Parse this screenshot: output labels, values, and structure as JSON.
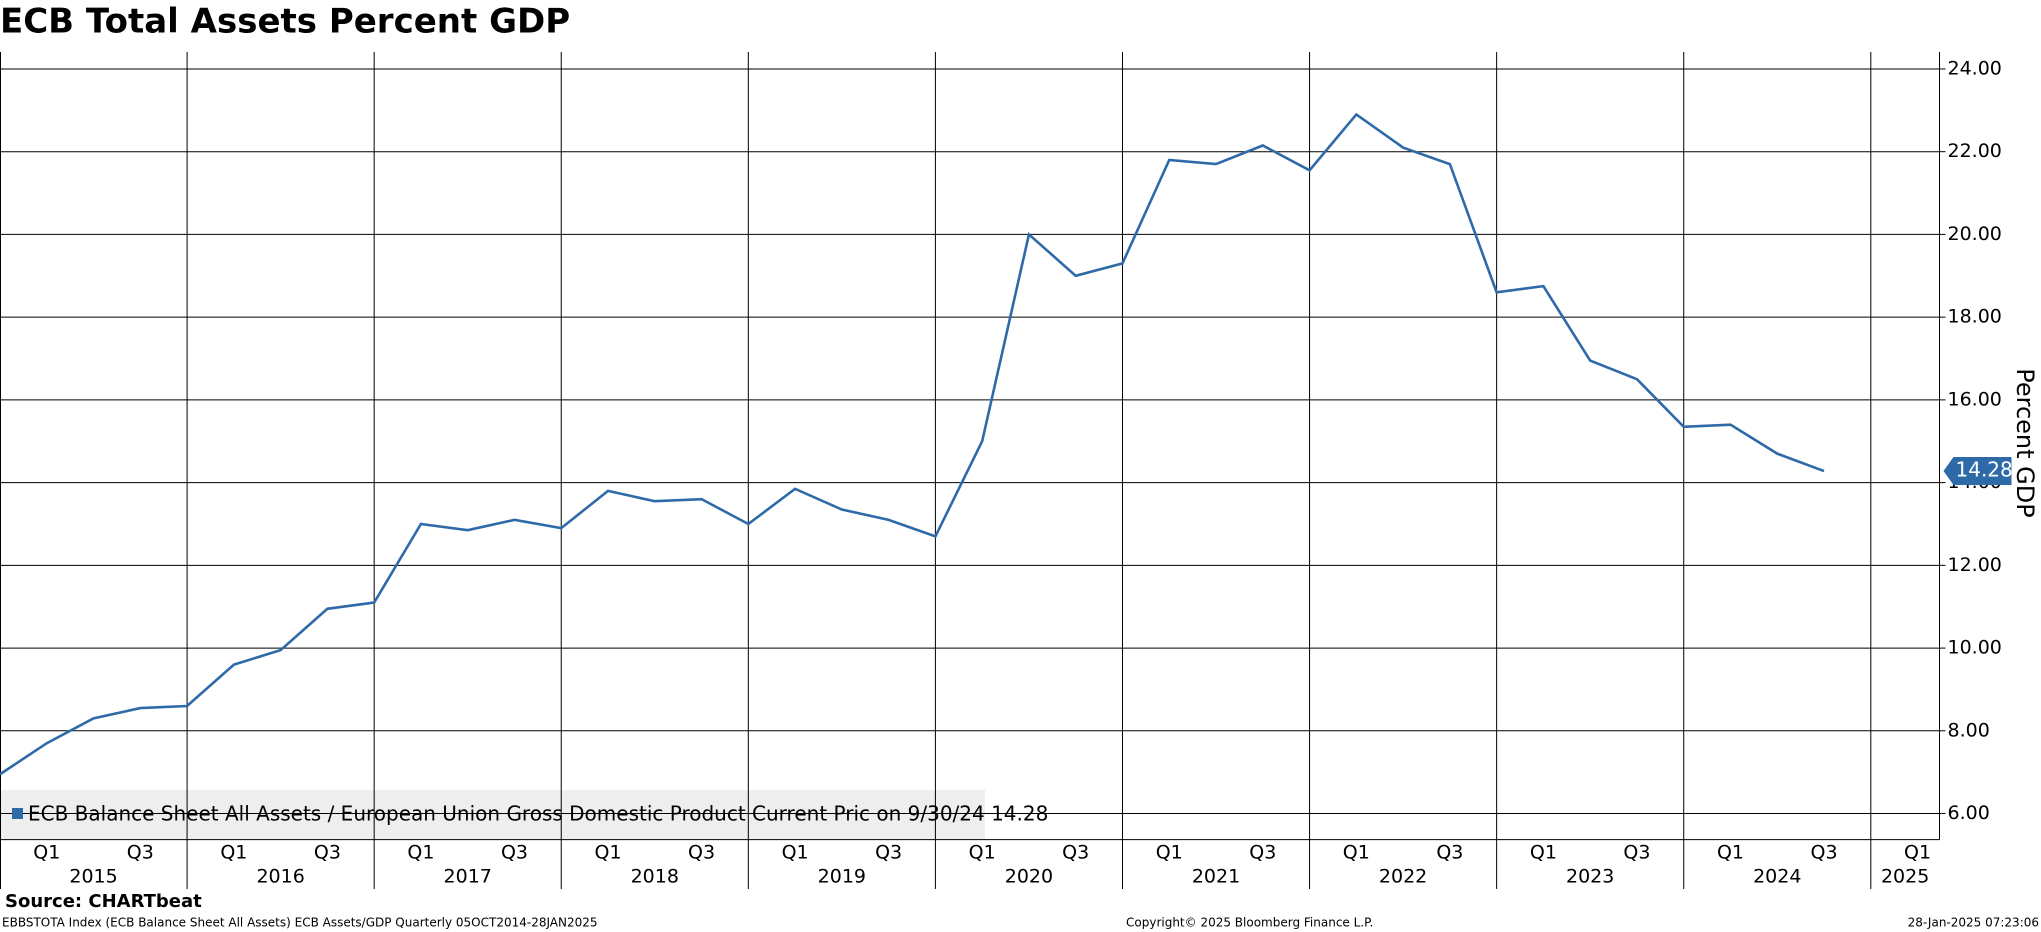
{
  "chart_data": {
    "type": "line",
    "title": "ECB Total Assets Percent GDP",
    "y_axis_label": "Percent GDP",
    "categories": [
      null,
      "Q1",
      null,
      "Q3",
      null,
      "Q1",
      null,
      "Q3",
      null,
      "Q1",
      null,
      "Q3",
      null,
      "Q1",
      null,
      "Q3",
      null,
      "Q1",
      null,
      "Q3",
      null,
      "Q1",
      null,
      "Q3",
      null,
      "Q1",
      null,
      "Q3",
      null,
      "Q1",
      null,
      "Q3",
      null,
      "Q1",
      null,
      "Q3",
      null,
      "Q1",
      null,
      "Q3",
      null,
      "Q1"
    ],
    "years": [
      "2015",
      "2016",
      "2017",
      "2018",
      "2019",
      "2020",
      "2021",
      "2022",
      "2023",
      "2024",
      "2025"
    ],
    "series": [
      {
        "name": "ECB Balance Sheet All Assets / European Union Gross Domestic Product Current Pric on 9/30/24 14.28",
        "color": "#2e6aa8",
        "values": [
          6.95,
          7.7,
          8.3,
          8.55,
          8.6,
          9.6,
          9.95,
          10.95,
          11.1,
          13.0,
          12.85,
          13.1,
          12.9,
          13.8,
          13.55,
          13.6,
          13.0,
          13.85,
          13.35,
          13.1,
          12.7,
          15.0,
          20.0,
          19.0,
          19.3,
          21.8,
          21.7,
          22.15,
          21.55,
          22.9,
          22.1,
          21.7,
          18.6,
          18.75,
          16.95,
          16.5,
          15.35,
          15.4,
          14.7,
          14.28,
          null,
          null
        ]
      }
    ],
    "ylim": [
      5.37,
      24.41
    ],
    "yticks": [
      {
        "value": 6,
        "label": "6.00"
      },
      {
        "value": 8,
        "label": "8.00"
      },
      {
        "value": 10,
        "label": "10.00"
      },
      {
        "value": 12,
        "label": "12.00"
      },
      {
        "value": 14,
        "label": "14.00"
      },
      {
        "value": 16,
        "label": "16.00"
      },
      {
        "value": 18,
        "label": "18.00"
      },
      {
        "value": 20,
        "label": "20.00"
      },
      {
        "value": 22,
        "label": "22.00"
      },
      {
        "value": 24,
        "label": "24.00"
      }
    ],
    "grid": true,
    "source": "Source: CHARTbeat",
    "footer_left": "EBBSTOTA Index (ECB Balance Sheet All Assets) ECB Assets/GDP  Quarterly 05OCT2014-28JAN2025",
    "footer_center": "Copyright© 2025 Bloomberg Finance L.P.",
    "footer_right": "28-Jan-2025 07:23:06"
  }
}
